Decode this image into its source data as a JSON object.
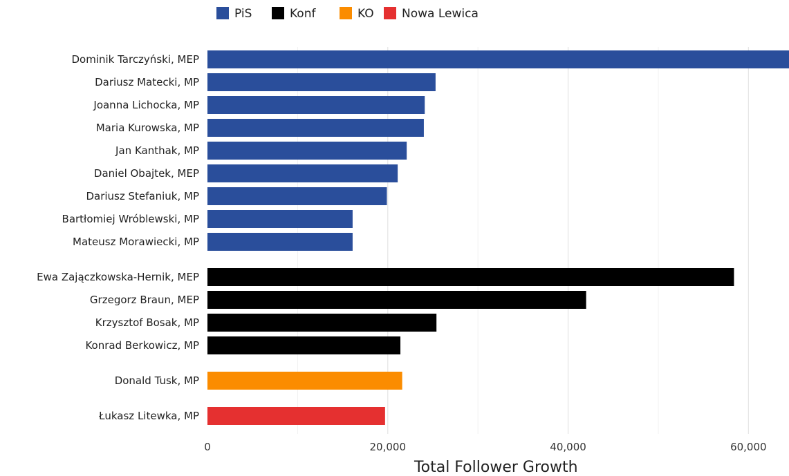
{
  "chart_data": {
    "type": "bar",
    "orientation": "horizontal",
    "title": "",
    "xlabel": "Total Follower Growth",
    "ylabel": "",
    "xlim": [
      0,
      64500
    ],
    "xticks": [
      0,
      20000,
      40000,
      60000
    ],
    "xtick_labels": [
      "0",
      "20,000",
      "40,000",
      "60,000"
    ],
    "grid": "vertical",
    "legend_position": "top-left",
    "legend": [
      {
        "name": "PiS",
        "color": "#2a4e9b"
      },
      {
        "name": "Konf",
        "color": "#000000"
      },
      {
        "name": "KO",
        "color": "#fb8c00"
      },
      {
        "name": "Nowa Lewica",
        "color": "#e53030"
      }
    ],
    "groups": [
      {
        "party": "PiS",
        "color": "#2a4e9b",
        "bars": [
          {
            "label": "Dominik Tarczyński, MEP",
            "value": 64500
          },
          {
            "label": "Dariusz Matecki, MP",
            "value": 25300
          },
          {
            "label": "Joanna Lichocka, MP",
            "value": 24100
          },
          {
            "label": "Maria Kurowska, MP",
            "value": 24000
          },
          {
            "label": "Jan Kanthak, MP",
            "value": 22100
          },
          {
            "label": "Daniel Obajtek, MEP",
            "value": 21100
          },
          {
            "label": "Dariusz Stefaniuk, MP",
            "value": 19900
          },
          {
            "label": "Bartłomiej Wróblewski, MP",
            "value": 16100
          },
          {
            "label": "Mateusz Morawiecki, MP",
            "value": 16100
          }
        ]
      },
      {
        "party": "Konf",
        "color": "#000000",
        "bars": [
          {
            "label": "Ewa Zajączkowska-Hernik, MEP",
            "value": 58400
          },
          {
            "label": "Grzegorz Braun, MEP",
            "value": 42000
          },
          {
            "label": "Krzysztof Bosak, MP",
            "value": 25400
          },
          {
            "label": "Konrad Berkowicz, MP",
            "value": 21400
          }
        ]
      },
      {
        "party": "KO",
        "color": "#fb8c00",
        "bars": [
          {
            "label": "Donald Tusk, MP",
            "value": 21600
          }
        ]
      },
      {
        "party": "Nowa Lewica",
        "color": "#e53030",
        "bars": [
          {
            "label": "Łukasz Litewka, MP",
            "value": 19700
          }
        ]
      }
    ]
  }
}
